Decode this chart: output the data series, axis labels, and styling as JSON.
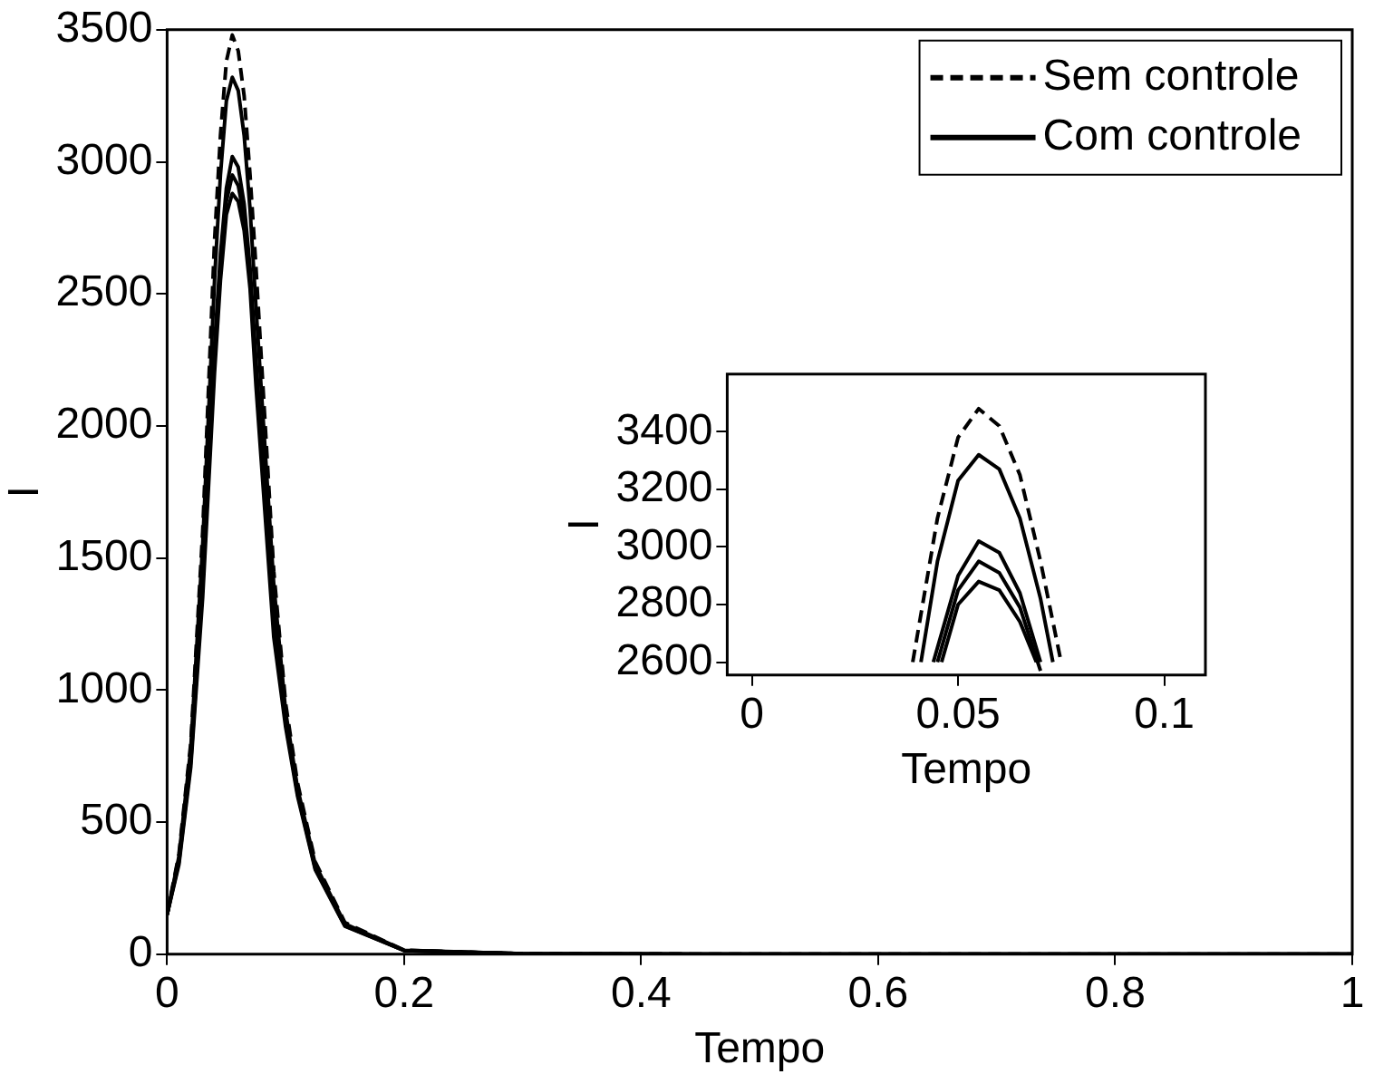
{
  "chart_data": [
    {
      "type": "line",
      "xlabel": "Tempo",
      "ylabel": "I",
      "x": [
        0,
        0.01,
        0.02,
        0.03,
        0.04,
        0.045,
        0.05,
        0.055,
        0.06,
        0.065,
        0.07,
        0.075,
        0.09,
        0.1,
        0.11,
        0.125,
        0.15,
        0.2,
        0.3,
        0.5,
        1
      ],
      "xlim": [
        0,
        1
      ],
      "ylim": [
        0,
        3500
      ],
      "xticks": [
        0,
        0.2,
        0.4,
        0.6,
        0.8,
        1
      ],
      "yticks": [
        0,
        500,
        1000,
        1500,
        2000,
        2500,
        3000,
        3500
      ],
      "legend": "top right",
      "grid": false,
      "series": [
        {
          "name": "Sem controle",
          "color": "#000000",
          "line_style": "dashed",
          "values": [
            150,
            380,
            800,
            1600,
            2700,
            3100,
            3380,
            3480,
            3420,
            3250,
            2950,
            2600,
            1450,
            950,
            650,
            350,
            120,
            15,
            2,
            0,
            0
          ]
        },
        {
          "name": "Com controle",
          "color": "#000000",
          "line_style": "solid",
          "values": [
            150,
            370,
            780,
            1550,
            2550,
            2950,
            3230,
            3320,
            3270,
            3100,
            2820,
            2450,
            1400,
            920,
            630,
            340,
            115,
            15,
            2,
            0,
            0
          ]
        },
        {
          "color": "#000000",
          "line_style": "solid",
          "values": [
            150,
            360,
            750,
            1450,
            2300,
            2650,
            2900,
            3020,
            2980,
            2840,
            2600,
            2250,
            1300,
            900,
            620,
            330,
            110,
            14,
            2,
            0,
            0
          ]
        },
        {
          "color": "#000000",
          "line_style": "solid",
          "values": [
            150,
            350,
            730,
            1400,
            2250,
            2600,
            2850,
            2950,
            2910,
            2790,
            2560,
            2200,
            1250,
            880,
            610,
            325,
            108,
            14,
            2,
            0,
            0
          ]
        },
        {
          "color": "#000000",
          "line_style": "solid",
          "values": [
            150,
            340,
            710,
            1350,
            2200,
            2550,
            2800,
            2880,
            2850,
            2740,
            2520,
            2150,
            1200,
            860,
            600,
            320,
            106,
            14,
            2,
            0,
            0
          ]
        }
      ]
    },
    {
      "type": "line",
      "xlabel": "Tempo",
      "ylabel": "I",
      "xlim": [
        -0.006,
        0.11
      ],
      "ylim": [
        2555,
        3600
      ],
      "xticks": [
        0,
        0.05,
        0.1
      ],
      "yticks": [
        2600,
        2800,
        3000,
        3200,
        3400
      ],
      "grid": false,
      "series": [
        {
          "color": "#000000",
          "line_style": "dashed",
          "x": [
            0.039,
            0.045,
            0.05,
            0.055,
            0.06,
            0.065,
            0.07,
            0.075
          ],
          "values": [
            2600,
            3100,
            3380,
            3480,
            3420,
            3250,
            2950,
            2600
          ]
        },
        {
          "color": "#000000",
          "line_style": "solid",
          "x": [
            0.041,
            0.045,
            0.05,
            0.055,
            0.06,
            0.065,
            0.07,
            0.073
          ],
          "values": [
            2600,
            2950,
            3230,
            3320,
            3270,
            3100,
            2820,
            2600
          ]
        },
        {
          "color": "#000000",
          "line_style": "solid",
          "x": [
            0.044,
            0.05,
            0.055,
            0.06,
            0.065,
            0.07
          ],
          "values": [
            2600,
            2900,
            3020,
            2980,
            2840,
            2600
          ]
        },
        {
          "color": "#000000",
          "line_style": "solid",
          "x": [
            0.045,
            0.05,
            0.055,
            0.06,
            0.065,
            0.07
          ],
          "values": [
            2600,
            2850,
            2950,
            2910,
            2790,
            2570
          ]
        },
        {
          "color": "#000000",
          "line_style": "solid",
          "x": [
            0.046,
            0.05,
            0.055,
            0.06,
            0.065,
            0.069
          ],
          "values": [
            2600,
            2800,
            2880,
            2850,
            2740,
            2600
          ]
        }
      ]
    }
  ]
}
